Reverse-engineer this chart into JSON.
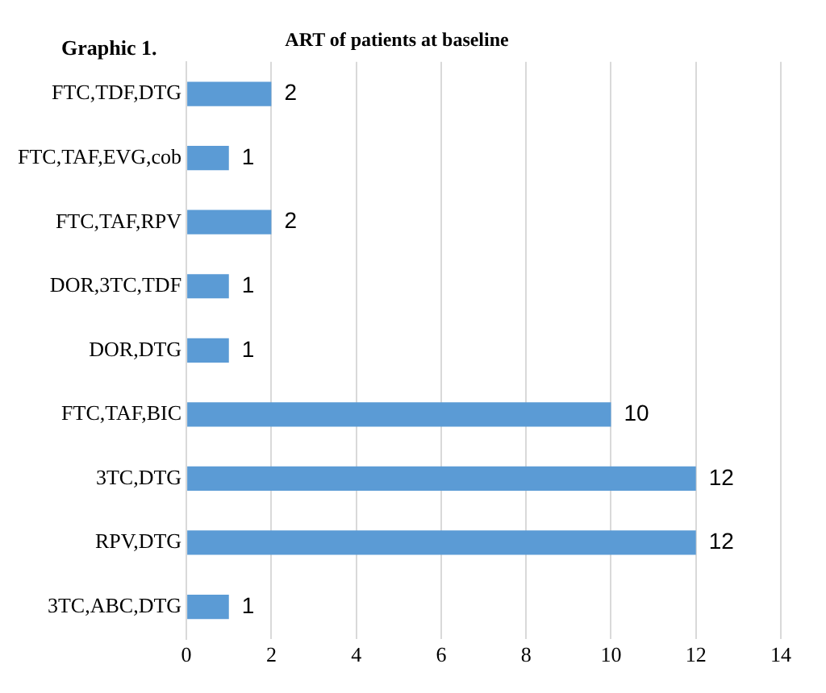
{
  "chart_data": {
    "type": "bar",
    "orientation": "horizontal",
    "title": "ART of patients at baseline",
    "annotations": [
      "Graphic 1."
    ],
    "categories": [
      "FTC,TDF,DTG",
      "FTC,TAF,EVG,cob",
      "FTC,TAF,RPV",
      "DOR,3TC,TDF",
      "DOR,DTG",
      "FTC,TAF,BIC",
      "3TC,DTG",
      "RPV,DTG",
      "3TC,ABC,DTG"
    ],
    "values": [
      2,
      1,
      2,
      1,
      1,
      10,
      12,
      12,
      1
    ],
    "color": "#5b9bd5",
    "xlim": [
      0,
      14
    ],
    "xticks": [
      0,
      2,
      4,
      6,
      8,
      10,
      12,
      14
    ],
    "grid": "x",
    "data_labels": true,
    "legend": false
  }
}
